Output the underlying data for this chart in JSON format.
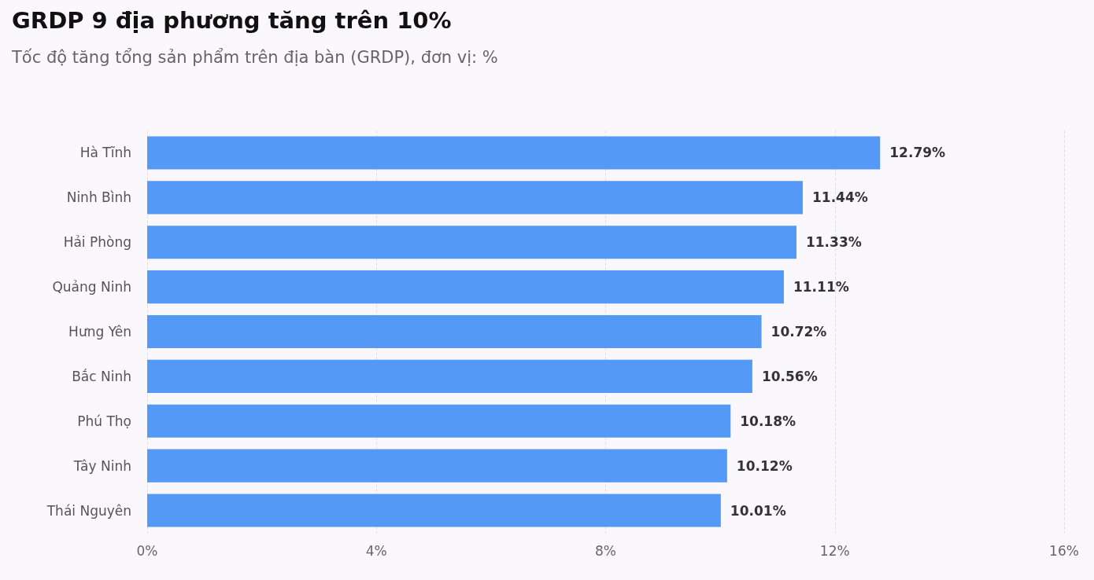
{
  "chart_data": {
    "type": "bar",
    "orientation": "horizontal",
    "title": "GRDP 9 địa phương tăng trên 10%",
    "subtitle": "Tốc độ tăng tổng sản phẩm trên địa bàn (GRDP), đơn vị: %",
    "categories": [
      "Hà Tĩnh",
      "Ninh Bình",
      "Hải Phòng",
      "Quảng Ninh",
      "Hưng Yên",
      "Bắc Ninh",
      "Phú Thọ",
      "Tây Ninh",
      "Thái Nguyên"
    ],
    "values": [
      12.79,
      11.44,
      11.33,
      11.11,
      10.72,
      10.56,
      10.18,
      10.12,
      10.01
    ],
    "value_labels": [
      "12.79%",
      "11.44%",
      "11.33%",
      "11.11%",
      "10.72%",
      "10.56%",
      "10.18%",
      "10.12%",
      "10.01%"
    ],
    "color": "#5599f7",
    "xlim": [
      0,
      16
    ],
    "xticks": [
      {
        "value": 0,
        "label": "0%"
      },
      {
        "value": 4,
        "label": "4%"
      },
      {
        "value": 8,
        "label": "8%"
      },
      {
        "value": 12,
        "label": "12%"
      },
      {
        "value": 16,
        "label": "16%"
      }
    ],
    "grid": "x"
  }
}
